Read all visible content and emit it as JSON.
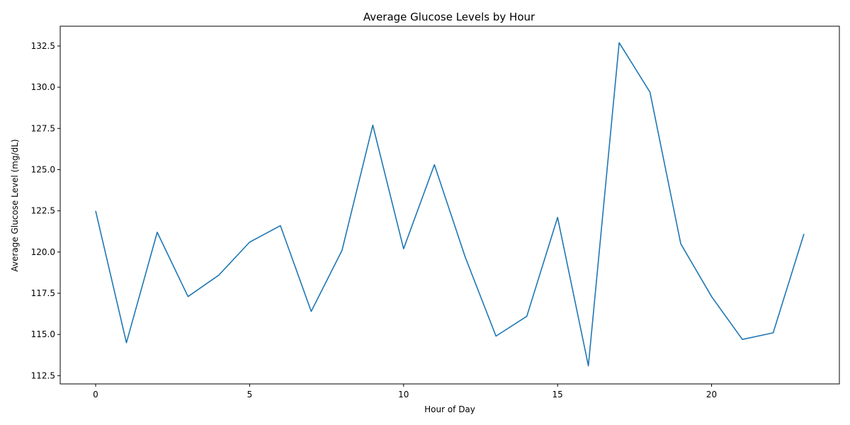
{
  "chart_data": {
    "type": "line",
    "title": "Average Glucose Levels by Hour",
    "xlabel": "Hour of Day",
    "ylabel": "Average Glucose Level (mg/dL)",
    "xlim": [
      -1.15,
      24.15
    ],
    "ylim": [
      112.0,
      133.7
    ],
    "xticks": [
      0,
      5,
      10,
      15,
      20
    ],
    "xtick_labels": [
      "0",
      "5",
      "10",
      "15",
      "20"
    ],
    "yticks": [
      112.5,
      115.0,
      117.5,
      120.0,
      122.5,
      125.0,
      127.5,
      130.0,
      132.5
    ],
    "ytick_labels": [
      "112.5",
      "115.0",
      "117.5",
      "120.0",
      "122.5",
      "125.0",
      "127.5",
      "130.0",
      "132.5"
    ],
    "grid": false,
    "legend": "none",
    "series": [
      {
        "color": "#1f77b4",
        "x": [
          0,
          1,
          2,
          3,
          4,
          5,
          6,
          7,
          8,
          9,
          10,
          11,
          12,
          13,
          14,
          15,
          16,
          17,
          18,
          19,
          20,
          21,
          22,
          23
        ],
        "y": [
          122.5,
          114.5,
          121.2,
          117.3,
          118.6,
          120.6,
          121.6,
          116.4,
          120.1,
          127.7,
          120.2,
          125.3,
          119.7,
          114.9,
          116.1,
          122.1,
          113.1,
          132.7,
          129.7,
          120.5,
          117.3,
          114.7,
          115.1,
          121.1
        ]
      }
    ]
  }
}
